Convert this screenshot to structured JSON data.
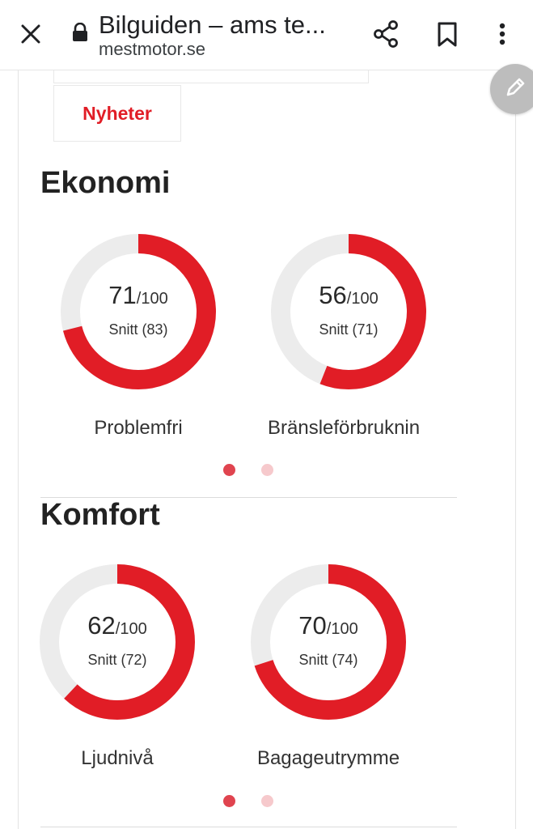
{
  "browser": {
    "page_title": "Bilguiden – ams te...",
    "url": "mestmotor.se"
  },
  "nav": {
    "news_tab": "Nyheter"
  },
  "sections": [
    {
      "title": "Ekonomi",
      "gauges": [
        {
          "score": "71",
          "max": "/100",
          "average": "Snitt (83)",
          "label": "Problemfri",
          "value": 71
        },
        {
          "score": "56",
          "max": "/100",
          "average": "Snitt (71)",
          "label": "Bränsleförbruknin",
          "value": 56
        }
      ]
    },
    {
      "title": "Komfort",
      "gauges": [
        {
          "score": "62",
          "max": "/100",
          "average": "Snitt (72)",
          "label": "Ljudnivå",
          "value": 62
        },
        {
          "score": "70",
          "max": "/100",
          "average": "Snitt (74)",
          "label": "Bagageutrymme",
          "value": 70
        }
      ]
    }
  ],
  "colors": {
    "accent": "#e11d26",
    "track": "#ececec",
    "dot_active": "#e0444f",
    "dot_inactive": "#f6c9cc"
  },
  "icons": [
    "close-icon",
    "lock-icon",
    "share-icon",
    "bookmark-icon",
    "more-vert-icon",
    "pencil-icon"
  ]
}
